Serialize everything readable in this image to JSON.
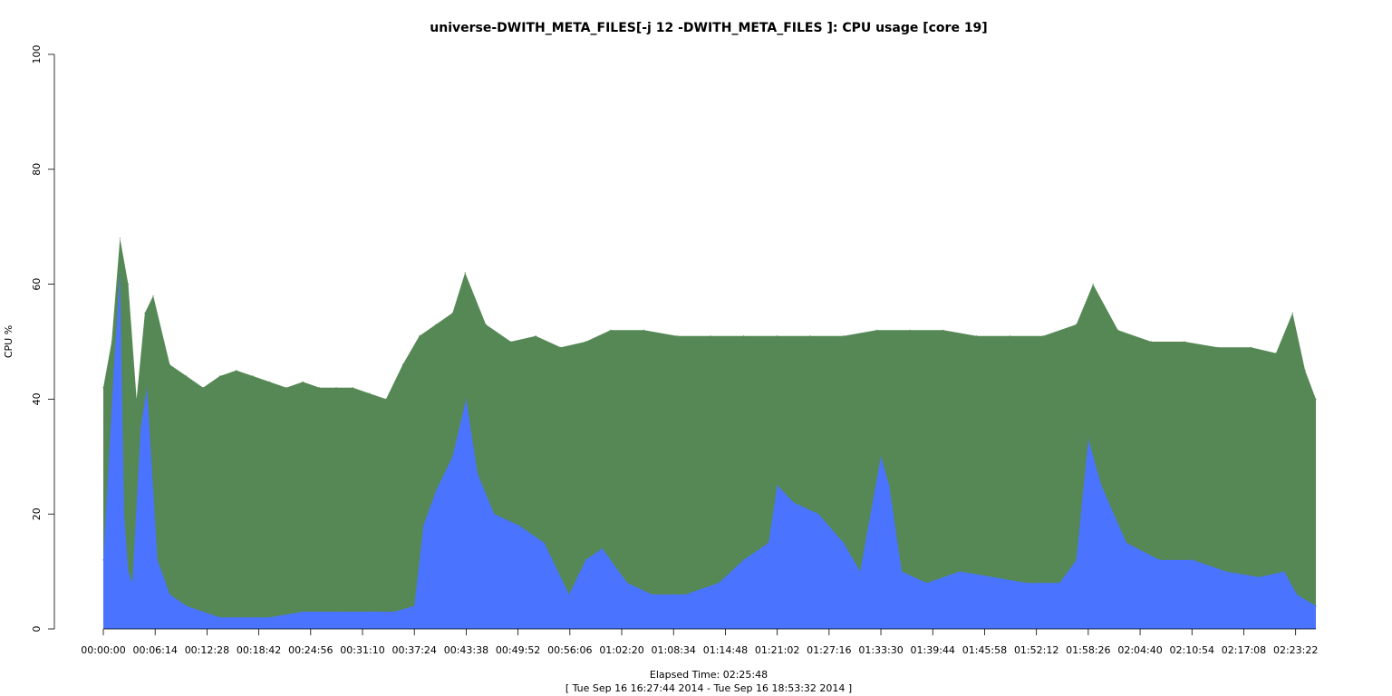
{
  "chart_data": {
    "type": "area",
    "title": "universe-DWITH_META_FILES[-j 12 -DWITH_META_FILES ]: CPU usage [core 19]",
    "xlabel": "Elapsed Time: 02:25:48",
    "xlabel_sub": "[ Tue Sep 16 16:27:44 2014 - Tue Sep 16 18:53:32 2014 ]",
    "ylabel": "CPU %",
    "ylim": [
      0,
      100
    ],
    "yticks": [
      "0",
      "20",
      "40",
      "60",
      "80",
      "100"
    ],
    "xlim_seconds": [
      0,
      8748
    ],
    "xticks": [
      "00:00:00",
      "00:06:14",
      "00:12:28",
      "00:18:42",
      "00:24:56",
      "00:31:10",
      "00:37:24",
      "00:43:38",
      "00:49:52",
      "00:56:06",
      "01:02:20",
      "01:08:34",
      "01:14:48",
      "01:21:02",
      "01:27:16",
      "01:33:30",
      "01:39:44",
      "01:45:58",
      "01:52:12",
      "01:58:26",
      "02:04:40",
      "02:10:54",
      "02:17:08",
      "02:23:22"
    ],
    "colors": {
      "total": "#558855",
      "user": "#4a74ff"
    },
    "series": [
      {
        "key": "total",
        "x": [
          "00:00:00",
          "00:01:00",
          "00:02:00",
          "00:03:00",
          "00:04:00",
          "00:05:00",
          "00:06:00",
          "00:08:00",
          "00:10:00",
          "00:12:00",
          "00:14:00",
          "00:16:00",
          "00:18:00",
          "00:20:00",
          "00:22:00",
          "00:24:00",
          "00:26:00",
          "00:28:00",
          "00:30:00",
          "00:32:00",
          "00:34:00",
          "00:36:00",
          "00:38:00",
          "00:40:00",
          "00:42:00",
          "00:43:30",
          "00:46:00",
          "00:49:00",
          "00:52:00",
          "00:55:00",
          "00:58:00",
          "01:01:00",
          "01:05:00",
          "01:09:00",
          "01:13:00",
          "01:17:00",
          "01:21:00",
          "01:25:00",
          "01:29:00",
          "01:33:00",
          "01:37:00",
          "01:41:00",
          "01:45:00",
          "01:49:00",
          "01:53:00",
          "01:57:00",
          "01:59:00",
          "02:02:00",
          "02:06:00",
          "02:10:00",
          "02:14:00",
          "02:18:00",
          "02:21:00",
          "02:23:00",
          "02:24:30",
          "02:25:48"
        ],
        "values": [
          42,
          50,
          68,
          60,
          40,
          55,
          58,
          46,
          44,
          42,
          44,
          45,
          44,
          43,
          42,
          43,
          42,
          42,
          42,
          41,
          40,
          46,
          51,
          53,
          55,
          62,
          53,
          50,
          51,
          49,
          50,
          52,
          52,
          51,
          51,
          51,
          51,
          51,
          51,
          52,
          52,
          52,
          51,
          51,
          51,
          53,
          60,
          52,
          50,
          50,
          49,
          49,
          48,
          55,
          45,
          40
        ]
      },
      {
        "key": "user",
        "x": [
          "00:00:00",
          "00:00:30",
          "00:01:15",
          "00:02:00",
          "00:02:30",
          "00:03:00",
          "00:03:30",
          "00:04:30",
          "00:05:15",
          "00:06:30",
          "00:08:00",
          "00:10:00",
          "00:12:00",
          "00:14:00",
          "00:16:00",
          "00:18:00",
          "00:20:00",
          "00:24:00",
          "00:28:00",
          "00:32:00",
          "00:35:00",
          "00:37:24",
          "00:38:30",
          "00:40:00",
          "00:42:00",
          "00:43:38",
          "00:45:00",
          "00:47:00",
          "00:50:00",
          "00:53:00",
          "00:56:00",
          "00:58:00",
          "01:00:00",
          "01:03:00",
          "01:06:00",
          "01:10:00",
          "01:14:00",
          "01:17:00",
          "01:20:00",
          "01:21:02",
          "01:23:00",
          "01:26:00",
          "01:29:00",
          "01:31:00",
          "01:33:30",
          "01:34:30",
          "01:36:00",
          "01:39:00",
          "01:43:00",
          "01:47:00",
          "01:51:00",
          "01:55:00",
          "01:57:00",
          "01:58:26",
          "02:00:00",
          "02:03:00",
          "02:07:00",
          "02:11:00",
          "02:15:00",
          "02:19:00",
          "02:22:00",
          "02:23:30",
          "02:25:48"
        ],
        "values": [
          12,
          25,
          45,
          62,
          20,
          10,
          8,
          35,
          42,
          12,
          6,
          4,
          3,
          2,
          2,
          2,
          2,
          3,
          3,
          3,
          3,
          4,
          18,
          24,
          30,
          40,
          27,
          20,
          18,
          15,
          6,
          12,
          14,
          8,
          6,
          6,
          8,
          12,
          15,
          25,
          22,
          20,
          15,
          10,
          30,
          25,
          10,
          8,
          10,
          9,
          8,
          8,
          12,
          33,
          25,
          15,
          12,
          12,
          10,
          9,
          10,
          6,
          4
        ]
      }
    ]
  }
}
